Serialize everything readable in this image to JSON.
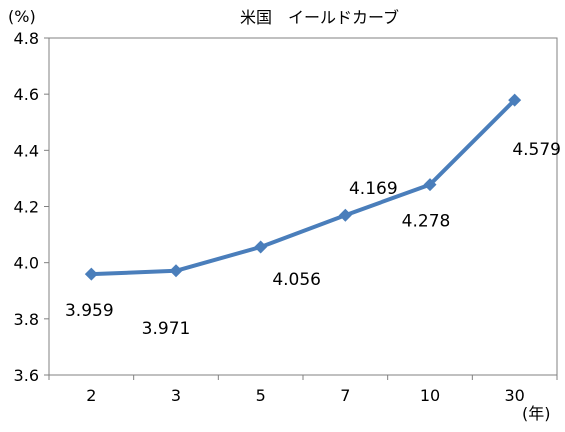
{
  "chart_data": {
    "type": "line",
    "title": "米国　イールドカーブ",
    "ylabel": "(%)",
    "xlabel": "(年)",
    "categories": [
      "2",
      "3",
      "5",
      "7",
      "10",
      "30"
    ],
    "series": [
      {
        "values": [
          3.959,
          3.971,
          4.056,
          4.169,
          4.278,
          4.579
        ]
      }
    ],
    "data_labels": [
      "3.959",
      "3.971",
      "4.056",
      "4.169",
      "4.278",
      "4.579"
    ],
    "ylim": [
      3.6,
      4.8
    ],
    "yticks": [
      "3.6",
      "3.8",
      "4.0",
      "4.2",
      "4.4",
      "4.6",
      "4.8"
    ],
    "grid": false,
    "legend": "none",
    "colors": {
      "line": "#4a7ebb",
      "axis": "#808080"
    }
  }
}
